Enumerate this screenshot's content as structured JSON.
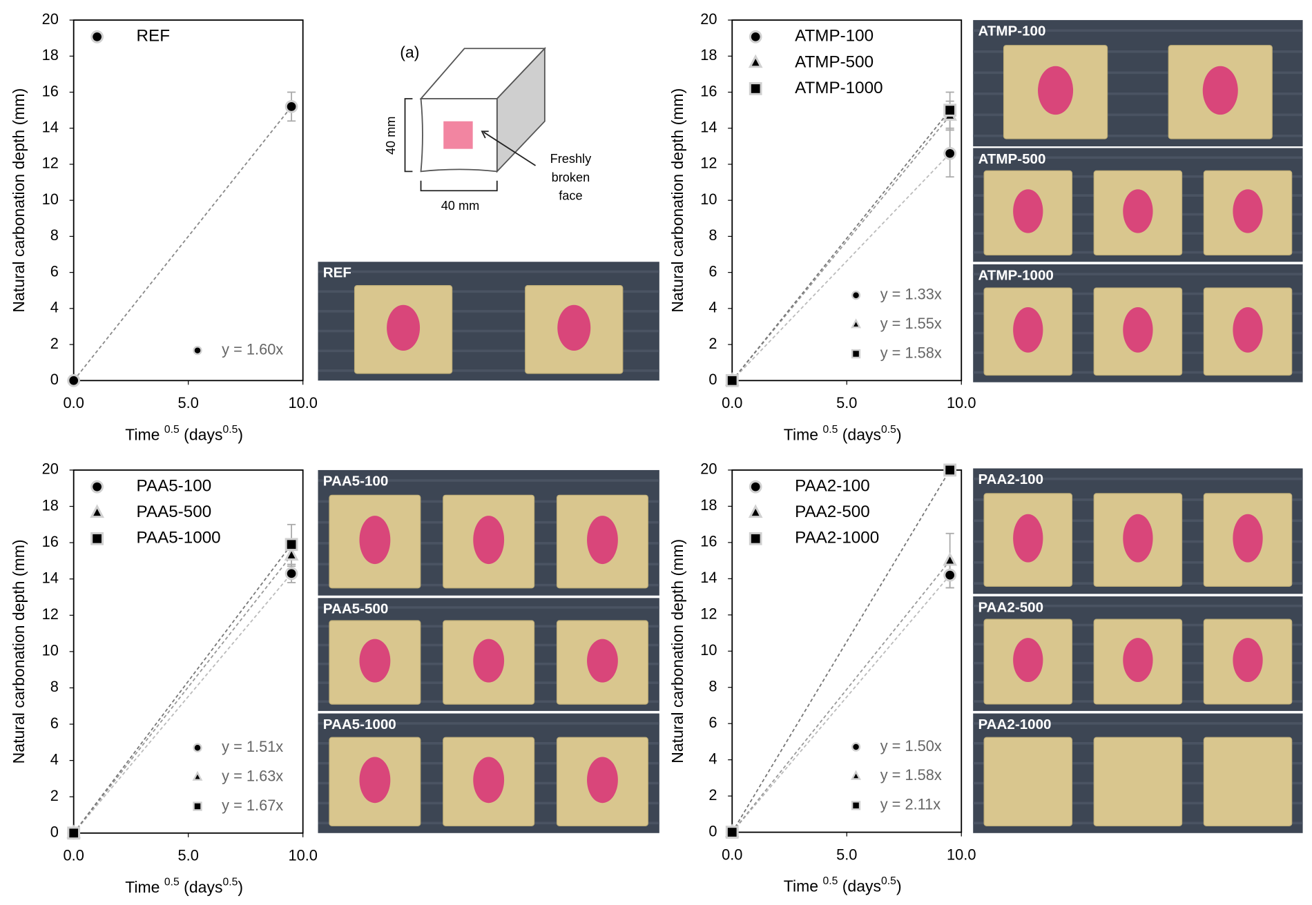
{
  "chart_data": [
    {
      "type": "scatter",
      "y_label": "Natural carbonation depth (mm)",
      "x_label": [
        {
          "text": "Time "
        },
        {
          "sup": "0.5"
        },
        {
          "text": " (days"
        },
        {
          "sup": "0.5"
        },
        {
          "text": ")"
        }
      ],
      "x": [
        0,
        9.5
      ],
      "xlim": [
        0,
        10
      ],
      "xticks": [
        {
          "value": 0,
          "label": "0.0"
        },
        {
          "value": 5,
          "label": "5.0"
        },
        {
          "value": 10,
          "label": "10.0"
        }
      ],
      "ylim": [
        0,
        20
      ],
      "yticks": [
        0,
        2,
        4,
        6,
        8,
        10,
        12,
        14,
        16,
        18,
        20
      ],
      "grid": false,
      "legend": "upper left",
      "series": [
        {
          "name": "REF",
          "marker": "circle",
          "color": "#000000",
          "line_color": "#888888",
          "values": [
            0,
            15.2
          ],
          "errors": [
            null,
            0.8
          ]
        }
      ],
      "annotations": [
        {
          "text": "y = 1.60x",
          "marker": "circle"
        }
      ]
    },
    {
      "type": "scatter",
      "y_label": "Natural carbonation depth (mm)",
      "x_label": [
        {
          "text": "Time "
        },
        {
          "sup": "0.5"
        },
        {
          "text": " (days"
        },
        {
          "sup": "0.5"
        },
        {
          "text": ")"
        }
      ],
      "x": [
        0,
        9.5
      ],
      "xlim": [
        0,
        10
      ],
      "xticks": [
        {
          "value": 0,
          "label": "0.0"
        },
        {
          "value": 5,
          "label": "5.0"
        },
        {
          "value": 10,
          "label": "10.0"
        }
      ],
      "ylim": [
        0,
        20
      ],
      "yticks": [
        0,
        2,
        4,
        6,
        8,
        10,
        12,
        14,
        16,
        18,
        20
      ],
      "grid": false,
      "legend": "upper left",
      "series": [
        {
          "name": "ATMP-100",
          "marker": "circle",
          "color": "#000000",
          "line_color": "#bbbbbb",
          "values": [
            0,
            12.6
          ],
          "errors": [
            null,
            1.3
          ]
        },
        {
          "name": "ATMP-500",
          "marker": "triangle",
          "color": "#000000",
          "line_color": "#999999",
          "values": [
            0,
            14.7
          ],
          "errors": [
            null,
            0.8
          ]
        },
        {
          "name": "ATMP-1000",
          "marker": "square",
          "color": "#000000",
          "line_color": "#777777",
          "values": [
            0,
            15.0
          ],
          "errors": [
            null,
            1.0
          ]
        }
      ],
      "annotations": [
        {
          "text": "y = 1.33x",
          "marker": "circle"
        },
        {
          "text": "y = 1.55x",
          "marker": "triangle"
        },
        {
          "text": "y = 1.58x",
          "marker": "square"
        }
      ]
    },
    {
      "type": "scatter",
      "y_label": "Natural carbonation depth (mm)",
      "x_label": [
        {
          "text": "Time "
        },
        {
          "sup": "0.5"
        },
        {
          "text": " (days"
        },
        {
          "sup": "0.5"
        },
        {
          "text": ")"
        }
      ],
      "x": [
        0,
        9.5
      ],
      "xlim": [
        0,
        10
      ],
      "xticks": [
        {
          "value": 0,
          "label": "0.0"
        },
        {
          "value": 5,
          "label": "5.0"
        },
        {
          "value": 10,
          "label": "10.0"
        }
      ],
      "ylim": [
        0,
        20
      ],
      "yticks": [
        0,
        2,
        4,
        6,
        8,
        10,
        12,
        14,
        16,
        18,
        20
      ],
      "grid": false,
      "legend": "upper left",
      "series": [
        {
          "name": "PAA5-100",
          "marker": "circle",
          "color": "#000000",
          "line_color": "#bbbbbb",
          "values": [
            0,
            14.3
          ],
          "errors": [
            null,
            0.5
          ]
        },
        {
          "name": "PAA5-500",
          "marker": "triangle",
          "color": "#000000",
          "line_color": "#999999",
          "values": [
            0,
            15.3
          ],
          "errors": [
            null,
            0.6
          ]
        },
        {
          "name": "PAA5-1000",
          "marker": "square",
          "color": "#000000",
          "line_color": "#777777",
          "values": [
            0,
            15.9
          ],
          "errors": [
            null,
            1.1
          ]
        }
      ],
      "annotations": [
        {
          "text": "y = 1.51x",
          "marker": "circle"
        },
        {
          "text": "y = 1.63x",
          "marker": "triangle"
        },
        {
          "text": "y = 1.67x",
          "marker": "square"
        }
      ]
    },
    {
      "type": "scatter",
      "y_label": "Natural carbonation depth (mm)",
      "x_label": [
        {
          "text": "Time "
        },
        {
          "sup": "0.5"
        },
        {
          "text": " (days"
        },
        {
          "sup": "0.5"
        },
        {
          "text": ")"
        }
      ],
      "x": [
        0,
        9.5
      ],
      "xlim": [
        0,
        10
      ],
      "xticks": [
        {
          "value": 0,
          "label": "0.0"
        },
        {
          "value": 5,
          "label": "5.0"
        },
        {
          "value": 10,
          "label": "10.0"
        }
      ],
      "ylim": [
        0,
        20
      ],
      "yticks": [
        0,
        2,
        4,
        6,
        8,
        10,
        12,
        14,
        16,
        18,
        20
      ],
      "grid": false,
      "legend": "upper left",
      "series": [
        {
          "name": "PAA2-100",
          "marker": "circle",
          "color": "#000000",
          "line_color": "#bbbbbb",
          "values": [
            0,
            14.2
          ],
          "errors": [
            null,
            0.7
          ]
        },
        {
          "name": "PAA2-500",
          "marker": "triangle",
          "color": "#000000",
          "line_color": "#999999",
          "values": [
            0,
            15.0
          ],
          "errors": [
            null,
            1.5
          ]
        },
        {
          "name": "PAA2-1000",
          "marker": "square",
          "color": "#000000",
          "line_color": "#777777",
          "values": [
            0,
            20.0
          ],
          "errors": [
            null,
            0
          ]
        }
      ],
      "annotations": [
        {
          "text": "y = 1.50x",
          "marker": "circle"
        },
        {
          "text": "y = 1.58x",
          "marker": "triangle"
        },
        {
          "text": "y = 2.11x",
          "marker": "square"
        }
      ]
    }
  ],
  "photos": [
    {
      "label": "REF"
    },
    {
      "label": "ATMP-100"
    },
    {
      "label": "ATMP-500"
    },
    {
      "label": "ATMP-1000"
    },
    {
      "label": "PAA5-100"
    },
    {
      "label": "PAA5-500"
    },
    {
      "label": "PAA5-1000"
    },
    {
      "label": "PAA2-100"
    },
    {
      "label": "PAA2-500"
    },
    {
      "label": "PAA2-1000"
    }
  ],
  "diagram": {
    "label": "(a)",
    "height_label": "40 mm",
    "width_label": "40 mm",
    "callout": [
      "Freshly",
      "broken",
      "face"
    ]
  }
}
